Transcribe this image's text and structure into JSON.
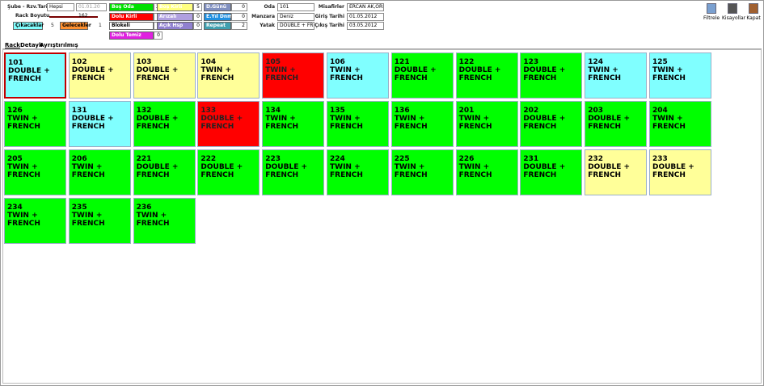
{
  "header": {
    "branch_label": "Şube - Rzv.Tarihi",
    "branch_value": "Hepsi",
    "date_value": "01.01.20",
    "rack_size_label": "Rack Boyutu",
    "rack_size_value": "162",
    "departures": {
      "label": "Çıkacaklar",
      "count": "5"
    },
    "arrivals": {
      "label": "Gelecekler",
      "count": "1"
    },
    "statuses": [
      {
        "label": "Boş Oda",
        "count": "24",
        "color": "#00e000"
      },
      {
        "label": "Dolu Kirli",
        "count": "2",
        "color": "#ff0000"
      },
      {
        "label": "Blokeli",
        "count": "0",
        "color": "#ffffff"
      },
      {
        "label": "Dolu Temiz",
        "count": "0",
        "color": "#e020e0"
      },
      {
        "label": "Boş Kirli",
        "count": "5",
        "color": "#ffff80"
      },
      {
        "label": "Arızalı",
        "count": "0",
        "color": "#b0a0e0"
      },
      {
        "label": "Açık Hsp",
        "count": "0",
        "color": "#9080d0"
      },
      {
        "label": "D.Günü",
        "count": "0",
        "color": "#8090c0"
      },
      {
        "label": "E.Yıl Dnm.",
        "count": "0",
        "color": "#2090e0"
      },
      {
        "label": "Repeat",
        "count": "2",
        "color": "#40a0b0"
      }
    ],
    "room_fields": [
      {
        "label": "Oda",
        "value": "101"
      },
      {
        "label": "Manzara",
        "value": "Deniz"
      },
      {
        "label": "Yatak",
        "value": "DOUBLE + FREN"
      }
    ],
    "guest_fields": [
      {
        "label": "Misafirler",
        "value": "ERCAN AK,ORH"
      },
      {
        "label": "Giriş Tarihi",
        "value": "01.05.2012"
      },
      {
        "label": "Çıkış Tarihi",
        "value": "03.05.2012"
      }
    ],
    "tools": [
      "Filtrele",
      "Kisayollar",
      "Kapat"
    ]
  },
  "tabs": [
    "Rack",
    "Detaylı",
    "Ayrıştırılmış"
  ],
  "rooms": [
    {
      "number": "101",
      "type": "DOUBLE + FRENCH",
      "color": "#80ffff",
      "selected": true
    },
    {
      "number": "102",
      "type": "DOUBLE + FRENCH",
      "color": "#ffff99"
    },
    {
      "number": "103",
      "type": "DOUBLE + FRENCH",
      "color": "#ffff99"
    },
    {
      "number": "104",
      "type": "TWIN + FRENCH",
      "color": "#ffff99"
    },
    {
      "number": "105",
      "type": "TWIN + FRENCH",
      "color": "#ff0000"
    },
    {
      "number": "106",
      "type": "TWIN + FRENCH",
      "color": "#80ffff"
    },
    {
      "number": "121",
      "type": "DOUBLE + FRENCH",
      "color": "#00ff00"
    },
    {
      "number": "122",
      "type": "DOUBLE + FRENCH",
      "color": "#00ff00"
    },
    {
      "number": "123",
      "type": "DOUBLE + FRENCH",
      "color": "#00ff00"
    },
    {
      "number": "124",
      "type": "TWIN + FRENCH",
      "color": "#80ffff"
    },
    {
      "number": "125",
      "type": "TWIN + FRENCH",
      "color": "#80ffff"
    },
    {
      "number": "126",
      "type": "TWIN + FRENCH",
      "color": "#00ff00"
    },
    {
      "number": "131",
      "type": "DOUBLE + FRENCH",
      "color": "#80ffff"
    },
    {
      "number": "132",
      "type": "DOUBLE + FRENCH",
      "color": "#00ff00"
    },
    {
      "number": "133",
      "type": "DOUBLE + FRENCH",
      "color": "#ff0000"
    },
    {
      "number": "134",
      "type": "TWIN + FRENCH",
      "color": "#00ff00"
    },
    {
      "number": "135",
      "type": "TWIN + FRENCH",
      "color": "#00ff00"
    },
    {
      "number": "136",
      "type": "TWIN + FRENCH",
      "color": "#00ff00"
    },
    {
      "number": "201",
      "type": "TWIN + FRENCH",
      "color": "#00ff00"
    },
    {
      "number": "202",
      "type": "DOUBLE + FRENCH",
      "color": "#00ff00"
    },
    {
      "number": "203",
      "type": "DOUBLE + FRENCH",
      "color": "#00ff00"
    },
    {
      "number": "204",
      "type": "TWIN + FRENCH",
      "color": "#00ff00"
    },
    {
      "number": "205",
      "type": "TWIN + FRENCH",
      "color": "#00ff00"
    },
    {
      "number": "206",
      "type": "TWIN + FRENCH",
      "color": "#00ff00"
    },
    {
      "number": "221",
      "type": "DOUBLE + FRENCH",
      "color": "#00ff00"
    },
    {
      "number": "222",
      "type": "DOUBLE + FRENCH",
      "color": "#00ff00"
    },
    {
      "number": "223",
      "type": "DOUBLE + FRENCH",
      "color": "#00ff00"
    },
    {
      "number": "224",
      "type": "TWIN + FRENCH",
      "color": "#00ff00"
    },
    {
      "number": "225",
      "type": "TWIN + FRENCH",
      "color": "#00ff00"
    },
    {
      "number": "226",
      "type": "TWIN + FRENCH",
      "color": "#00ff00"
    },
    {
      "number": "231",
      "type": "DOUBLE + FRENCH",
      "color": "#00ff00"
    },
    {
      "number": "232",
      "type": "DOUBLE + FRENCH",
      "color": "#ffff99"
    },
    {
      "number": "233",
      "type": "DOUBLE + FRENCH",
      "color": "#ffff99"
    },
    {
      "number": "234",
      "type": "TWIN + FRENCH",
      "color": "#00ff00"
    },
    {
      "number": "235",
      "type": "TWIN + FRENCH",
      "color": "#00ff00"
    },
    {
      "number": "236",
      "type": "TWIN + FRENCH",
      "color": "#00ff00"
    }
  ]
}
